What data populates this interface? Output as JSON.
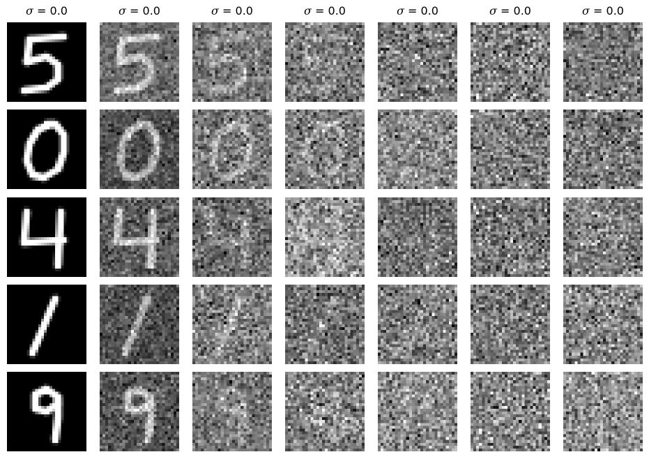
{
  "figure": {
    "column_titles": [
      {
        "symbol": "σ",
        "equals": "=",
        "value": "0.0"
      },
      {
        "symbol": "σ",
        "equals": "=",
        "value": "0.0"
      },
      {
        "symbol": "σ",
        "equals": "=",
        "value": "0.0"
      },
      {
        "symbol": "σ",
        "equals": "=",
        "value": "0.0"
      },
      {
        "symbol": "σ",
        "equals": "=",
        "value": "0.0"
      },
      {
        "symbol": "σ",
        "equals": "=",
        "value": "0.0"
      },
      {
        "symbol": "σ",
        "equals": "=",
        "value": "0.0"
      }
    ],
    "rows": [
      {
        "digit": "5"
      },
      {
        "digit": "0"
      },
      {
        "digit": "4"
      },
      {
        "digit": "1"
      },
      {
        "digit": "9"
      }
    ],
    "colormap": "gray"
  }
}
